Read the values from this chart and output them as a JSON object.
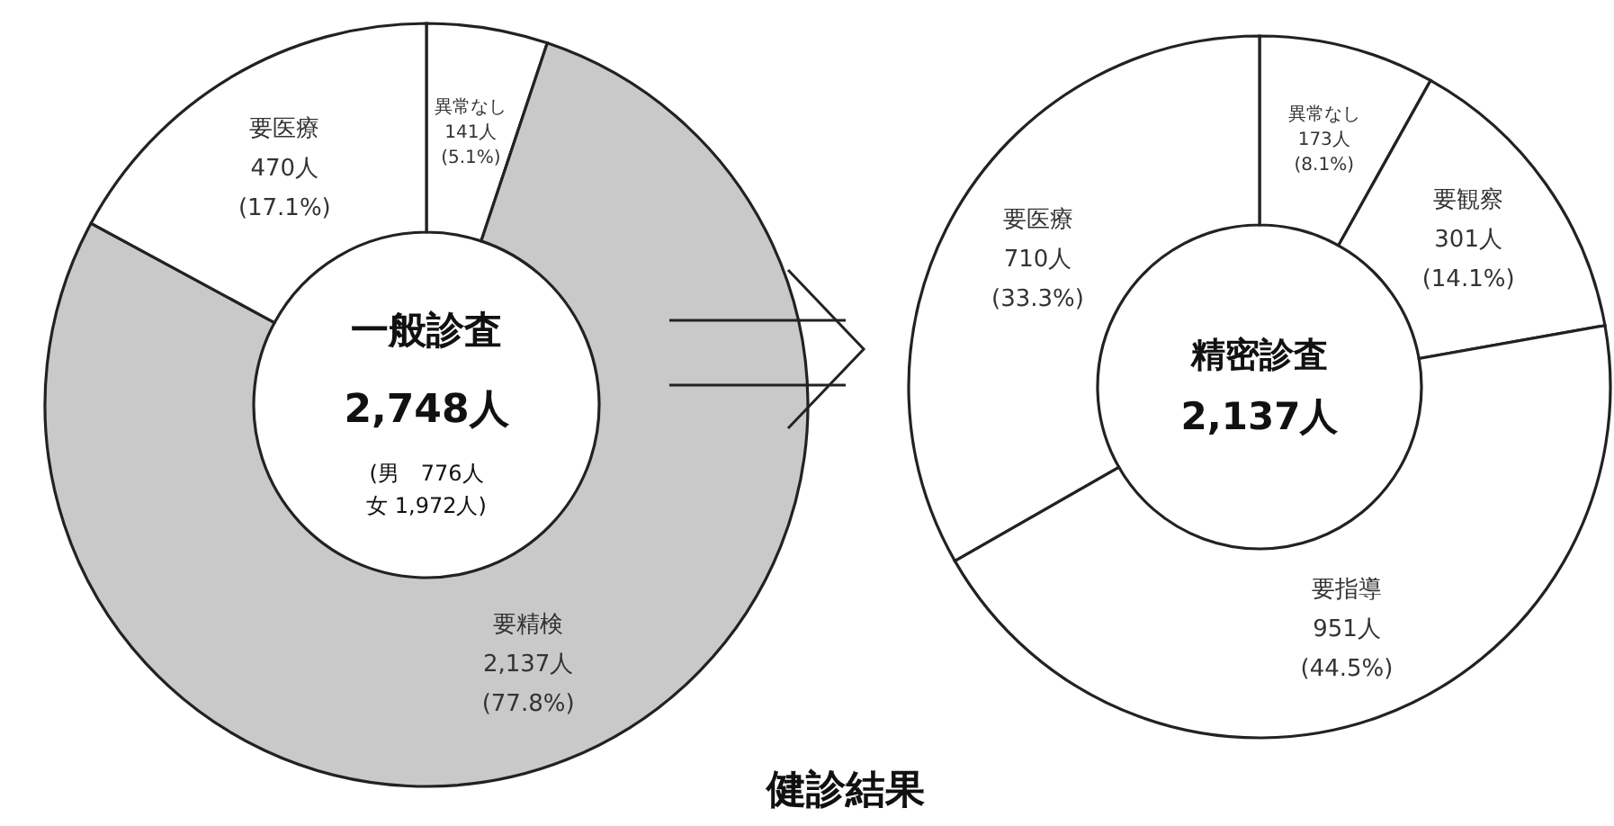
{
  "chart_data": [
    {
      "type": "donut",
      "categories": [
        "異常なし",
        "要精検",
        "要医療"
      ],
      "values": [
        141,
        2137,
        470
      ],
      "colors": [
        "#ffffff",
        "#c9c9c9",
        "#ffffff"
      ],
      "value_labels": [
        "141人\n(5.1%)",
        "2,137人\n(77.8%)",
        "470人\n(17.1%)"
      ],
      "annotations": [
        "一般診査",
        "2,748人",
        "(男　776人",
        "女 1,972人)"
      ]
    },
    {
      "type": "donut",
      "title": "健診結果",
      "categories": [
        "異常なし",
        "要観察",
        "要指導",
        "要医療"
      ],
      "values": [
        173,
        301,
        951,
        710
      ],
      "colors": [
        "#ffffff",
        "#ffffff",
        "#ffffff",
        "#ffffff"
      ],
      "value_labels": [
        "173人\n(8.1%)",
        "301人\n(14.1%)",
        "951人\n(44.5%)",
        "710人\n(33.3%)"
      ],
      "annotations": [
        "精密診査",
        "2,137人"
      ]
    }
  ]
}
